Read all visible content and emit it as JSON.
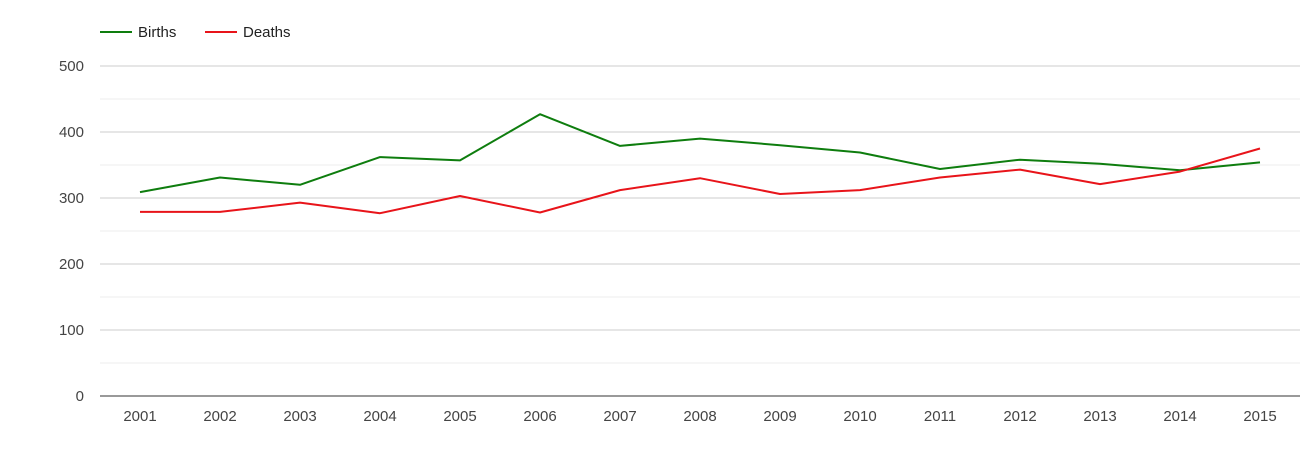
{
  "chart_data": {
    "type": "line",
    "title": "",
    "xlabel": "",
    "ylabel": "",
    "categories": [
      "2001",
      "2002",
      "2003",
      "2004",
      "2005",
      "2006",
      "2007",
      "2008",
      "2009",
      "2010",
      "2011",
      "2012",
      "2013",
      "2014",
      "2015"
    ],
    "series": [
      {
        "name": "Births",
        "color": "#0e7d0e",
        "values": [
          309,
          331,
          320,
          362,
          357,
          427,
          379,
          390,
          380,
          369,
          344,
          358,
          352,
          342,
          354
        ]
      },
      {
        "name": "Deaths",
        "color": "#e8141a",
        "values": [
          279,
          279,
          293,
          277,
          303,
          278,
          312,
          330,
          306,
          312,
          331,
          343,
          321,
          340,
          375
        ]
      }
    ],
    "ylim": [
      0,
      500
    ],
    "yticks": [
      "0",
      "100",
      "200",
      "300",
      "400",
      "500"
    ],
    "grid": true,
    "legend_position": "top-left"
  }
}
